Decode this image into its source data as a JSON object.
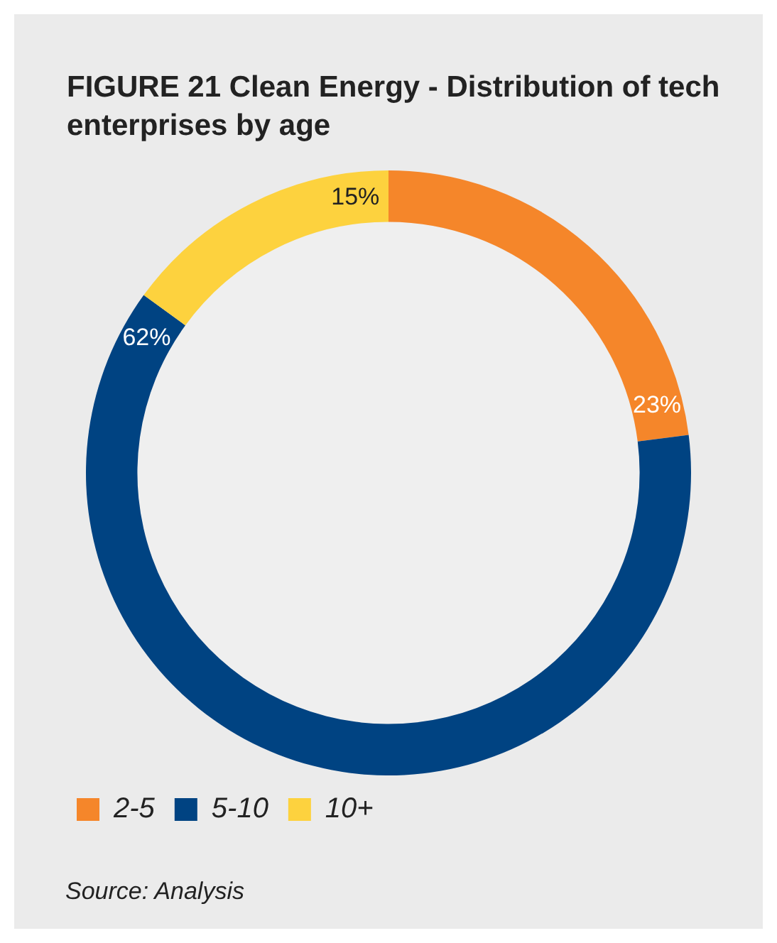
{
  "chart_data": {
    "type": "donut",
    "title": "FIGURE 21  Clean Energy - Distribution of tech enterprises by age",
    "categories": [
      "2-5",
      "5-10",
      "10+"
    ],
    "values": [
      23,
      62,
      15
    ],
    "colors": [
      "#f5862a",
      "#004382",
      "#fdd23e"
    ],
    "value_labels": [
      "23%",
      "62%",
      "15%"
    ],
    "legend": "bottom left",
    "annotations": [
      "Source: Analysis"
    ]
  }
}
